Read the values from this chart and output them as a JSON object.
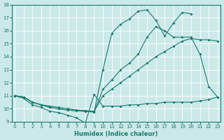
{
  "xlabel": "Humidex (Indice chaleur)",
  "x_min": 0,
  "x_max": 23,
  "y_min": 9,
  "y_max": 18,
  "background_color": "#cce9e9",
  "line_color": "#1a7a6e",
  "grid_color": "#b0d8d8",
  "series": [
    {
      "x": [
        0,
        1,
        2,
        3,
        4,
        5,
        6,
        7,
        8,
        9,
        10,
        11,
        12,
        13,
        14,
        15,
        16,
        17,
        18,
        19,
        20,
        21,
        22,
        23
      ],
      "y": [
        11.0,
        10.8,
        10.3,
        10.1,
        9.8,
        9.7,
        9.5,
        9.3,
        8.9,
        11.1,
        10.2,
        10.2,
        10.2,
        10.3,
        10.3,
        10.4,
        10.4,
        10.5,
        10.5,
        10.5,
        10.5,
        10.6,
        10.7,
        10.9
      ]
    },
    {
      "x": [
        0,
        1,
        2,
        3,
        4,
        5,
        6,
        7,
        8,
        9,
        10,
        11,
        12,
        13,
        14,
        15,
        16,
        17,
        18,
        19,
        20,
        21,
        22,
        23
      ],
      "y": [
        11.0,
        10.9,
        10.5,
        10.3,
        10.2,
        10.1,
        10.0,
        9.9,
        9.85,
        9.8,
        11.0,
        11.5,
        12.0,
        12.5,
        13.0,
        13.5,
        14.0,
        14.4,
        14.8,
        15.2,
        15.4,
        15.3,
        15.3,
        15.2
      ]
    },
    {
      "x": [
        0,
        1,
        2,
        3,
        4,
        5,
        6,
        7,
        8,
        9,
        10,
        11,
        12,
        13,
        14,
        15,
        16,
        17,
        18,
        19,
        20,
        21,
        22,
        23
      ],
      "y": [
        11.0,
        10.9,
        10.5,
        10.3,
        10.1,
        10.0,
        9.9,
        9.85,
        9.8,
        9.75,
        11.5,
        12.2,
        13.0,
        13.5,
        14.2,
        15.5,
        16.3,
        16.0,
        15.5,
        15.5,
        15.5,
        14.2,
        11.7,
        10.9
      ]
    },
    {
      "x": [
        0,
        1,
        2,
        3,
        4,
        5,
        6,
        7,
        8,
        9,
        10,
        11,
        12,
        13,
        14,
        15,
        16,
        17,
        18,
        19,
        20
      ],
      "y": [
        11.0,
        10.9,
        10.5,
        10.3,
        10.1,
        10.0,
        9.9,
        9.85,
        9.8,
        9.75,
        13.0,
        15.8,
        16.5,
        16.9,
        17.5,
        17.6,
        16.8,
        15.6,
        16.6,
        17.4,
        17.3
      ]
    }
  ]
}
